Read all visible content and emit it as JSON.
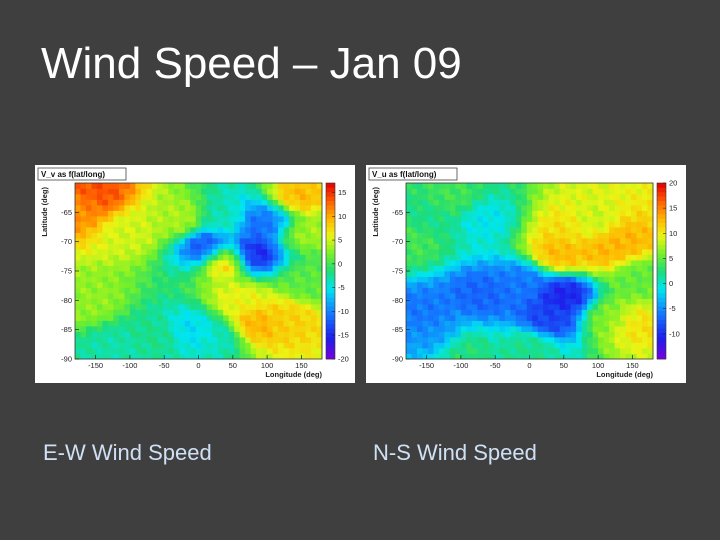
{
  "slide": {
    "title": "Wind Speed – Jan 09",
    "captions": {
      "left": "E-W Wind Speed",
      "right": "N-S Wind Speed"
    },
    "background": "#3f3f3f"
  },
  "chart_data": [
    {
      "type": "heatmap",
      "title": "V_v as f(lat/long)",
      "xlabel": "Longitude (deg)",
      "ylabel": "Latitude (deg)",
      "xlim": [
        -180,
        180
      ],
      "ylim": [
        -90,
        -60
      ],
      "xticks": [
        -150,
        -100,
        -50,
        0,
        50,
        100,
        150
      ],
      "yticks": [
        -65,
        -70,
        -75,
        -80,
        -85,
        -90
      ],
      "colorbar": {
        "min": -20,
        "max": 17,
        "ticks": [
          15,
          10,
          5,
          0,
          -5,
          -10,
          -15,
          -20
        ]
      },
      "grid": false,
      "features": [
        {
          "lon": -150,
          "lat": -62,
          "value": 14
        },
        {
          "lon": -170,
          "lat": -64,
          "value": 11
        },
        {
          "lon": -100,
          "lat": -68,
          "value": 5
        },
        {
          "lon": -30,
          "lat": -66,
          "value": 4
        },
        {
          "lon": 40,
          "lat": -66,
          "value": -3
        },
        {
          "lon": 15,
          "lat": -71,
          "value": -14
        },
        {
          "lon": 40,
          "lat": -73,
          "value": 11
        },
        {
          "lon": 75,
          "lat": -72,
          "value": -17
        },
        {
          "lon": 90,
          "lat": -67,
          "value": -12
        },
        {
          "lon": 110,
          "lat": -66,
          "value": -10
        },
        {
          "lon": 140,
          "lat": -63,
          "value": 10
        },
        {
          "lon": 150,
          "lat": -68,
          "value": 4
        },
        {
          "lon": 80,
          "lat": -84,
          "value": 10
        },
        {
          "lon": 130,
          "lat": -83,
          "value": 8
        },
        {
          "lon": 60,
          "lat": -80,
          "value": 6
        },
        {
          "lon": -10,
          "lat": -85,
          "value": -6
        },
        {
          "lon": 30,
          "lat": -86,
          "value": -4
        },
        {
          "lon": -120,
          "lat": -88,
          "value": -3
        },
        {
          "lon": -60,
          "lat": -86,
          "value": -2
        },
        {
          "lon": -160,
          "lat": -80,
          "value": 3
        },
        {
          "lon": 160,
          "lat": -77,
          "value": 1
        }
      ]
    },
    {
      "type": "heatmap",
      "title": "V_u as f(lat/long)",
      "xlabel": "Longitude (deg)",
      "ylabel": "Latitude (deg)",
      "xlim": [
        -180,
        180
      ],
      "ylim": [
        -90,
        -60
      ],
      "xticks": [
        -150,
        -100,
        -50,
        0,
        50,
        100,
        150
      ],
      "yticks": [
        -65,
        -70,
        -75,
        -80,
        -85,
        -90
      ],
      "colorbar": {
        "min": -15,
        "max": 20,
        "ticks": [
          20,
          15,
          10,
          5,
          0,
          -5,
          -10
        ]
      },
      "grid": false,
      "features": [
        {
          "lon": -140,
          "lat": -66,
          "value": 2
        },
        {
          "lon": -110,
          "lat": -63,
          "value": 4
        },
        {
          "lon": -70,
          "lat": -66,
          "value": -1
        },
        {
          "lon": -150,
          "lat": -82,
          "value": -6
        },
        {
          "lon": -70,
          "lat": -79,
          "value": -7
        },
        {
          "lon": -130,
          "lat": -86,
          "value": -5
        },
        {
          "lon": 50,
          "lat": -79,
          "value": -11
        },
        {
          "lon": 30,
          "lat": -83,
          "value": -9
        },
        {
          "lon": -10,
          "lat": -77,
          "value": -6
        },
        {
          "lon": 45,
          "lat": -72,
          "value": 13
        },
        {
          "lon": 60,
          "lat": -68,
          "value": 11
        },
        {
          "lon": 90,
          "lat": -67,
          "value": 8
        },
        {
          "lon": 105,
          "lat": -71,
          "value": 13
        },
        {
          "lon": 135,
          "lat": -70,
          "value": 13
        },
        {
          "lon": 150,
          "lat": -84,
          "value": 11
        },
        {
          "lon": 120,
          "lat": -83,
          "value": 6
        },
        {
          "lon": 160,
          "lat": -76,
          "value": 5
        },
        {
          "lon": -170,
          "lat": -70,
          "value": 4
        },
        {
          "lon": -100,
          "lat": -88,
          "value": 3
        },
        {
          "lon": 0,
          "lat": -88,
          "value": 2
        }
      ]
    }
  ]
}
